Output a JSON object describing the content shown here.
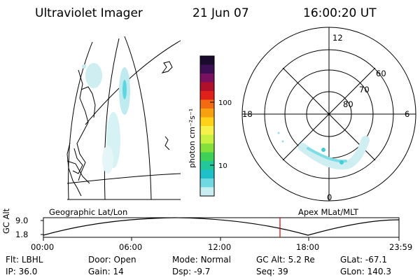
{
  "header": {
    "instrument": "Ultraviolet Imager",
    "date": "21 Jun 07",
    "time": "16:00:20 UT"
  },
  "colorbar": {
    "label": "photon cm⁻²s⁻¹",
    "ticks": [
      "100",
      "10"
    ],
    "colors": [
      "#1a0a2e",
      "#3c0f55",
      "#7a1060",
      "#b0102a",
      "#e0201a",
      "#f36a10",
      "#f7a010",
      "#ffd21a",
      "#f6f24a",
      "#c8f040",
      "#84e03a",
      "#3fd05a",
      "#22c89a",
      "#20c0c8",
      "#6fd8e0",
      "#c8eef2"
    ]
  },
  "geo_panel": {
    "label": "Geographic Lat/Lon"
  },
  "polar_panel": {
    "label": "Apex MLat/MLT",
    "mlt_labels": {
      "top": "12",
      "left": "18",
      "right": "6",
      "bottom": "0"
    },
    "lat_labels": [
      "60",
      "70",
      "80"
    ]
  },
  "altitude_plot": {
    "axis_title": "GC Alt",
    "y_ticks": [
      "9.0",
      "1.8"
    ],
    "x_ticks": [
      "00:00",
      "06:00",
      "12:00",
      "18:00",
      "23:59"
    ],
    "marker_color": "#dd0000"
  },
  "footer": {
    "row1": [
      {
        "label": "Flt:",
        "value": "LBHL"
      },
      {
        "label": "Door:",
        "value": "Open"
      },
      {
        "label": "Mode:",
        "value": "Normal"
      },
      {
        "label": "GC Alt:",
        "value": "5.2 Re"
      },
      {
        "label": "GLat:",
        "value": "-67.1"
      }
    ],
    "row2": [
      {
        "label": "IP:",
        "value": "36.0"
      },
      {
        "label": "Gain:",
        "value": "14"
      },
      {
        "label": "Dsp:",
        "value": "-9.7"
      },
      {
        "label": "Seq:",
        "value": "39"
      },
      {
        "label": "GLon:",
        "value": "140.3"
      }
    ]
  }
}
